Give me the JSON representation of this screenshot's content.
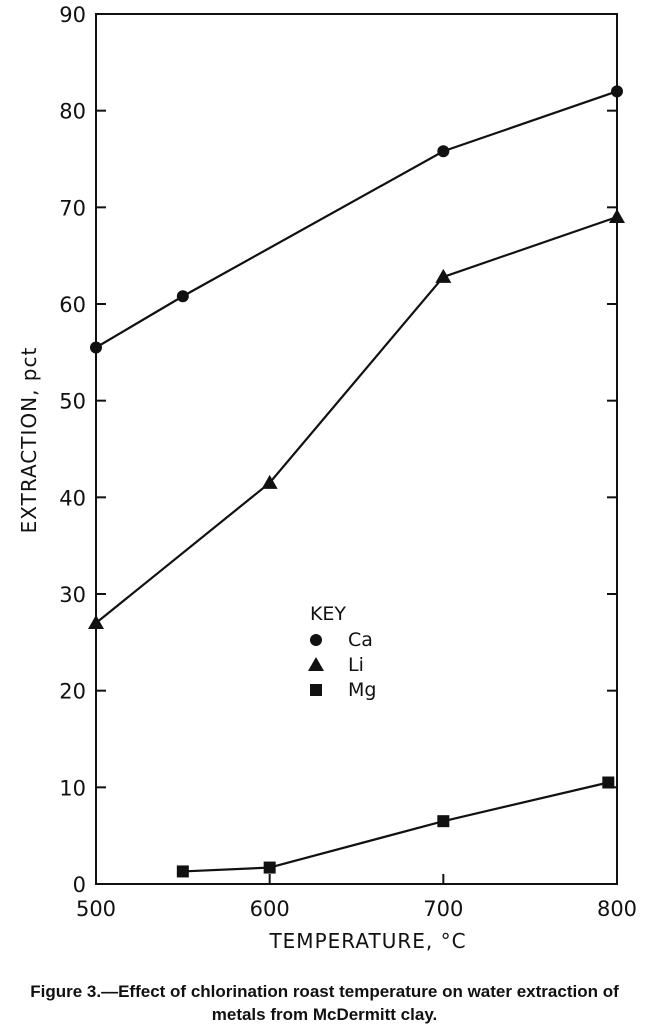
{
  "chart_data": {
    "type": "line",
    "xlabel": "TEMPERATURE, °C",
    "ylabel": "EXTRACTION, pct",
    "xlim": [
      500,
      800
    ],
    "ylim": [
      0,
      90
    ],
    "x_ticks": [
      "500",
      "600",
      "700",
      "800"
    ],
    "y_ticks": [
      "0",
      "10",
      "20",
      "30",
      "40",
      "50",
      "60",
      "70",
      "80",
      "90"
    ],
    "legend": {
      "title": "KEY",
      "placement": "center"
    },
    "series": [
      {
        "name": "Ca",
        "marker": "circle",
        "points": [
          [
            500,
            55.5
          ],
          [
            550,
            60.8
          ],
          [
            700,
            75.8
          ],
          [
            800,
            82.0
          ]
        ]
      },
      {
        "name": "Li",
        "marker": "triangle",
        "points": [
          [
            500,
            27.0
          ],
          [
            600,
            41.5
          ],
          [
            700,
            62.8
          ],
          [
            800,
            69.0
          ]
        ]
      },
      {
        "name": "Mg",
        "marker": "square",
        "points": [
          [
            550,
            1.3
          ],
          [
            600,
            1.7
          ],
          [
            700,
            6.5
          ],
          [
            795,
            10.5
          ]
        ]
      }
    ],
    "caption": "Figure 3.—Effect of chlorination roast temperature on water extraction of metals from McDermitt clay."
  }
}
